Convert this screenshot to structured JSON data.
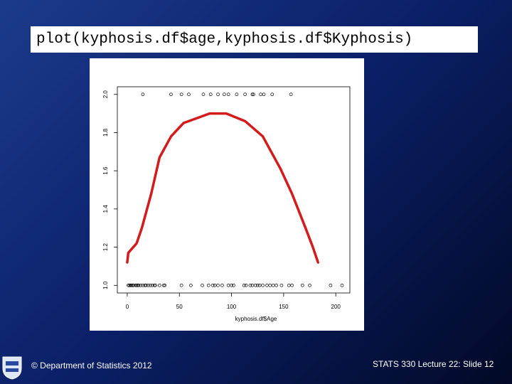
{
  "title": "plot(kyphosis.df$age,kyphosis.df$Kyphosis)",
  "footer": {
    "left": "© Department of Statistics 2012",
    "right": "STATS 330 Lecture 22: Slide 12"
  },
  "chart_data": {
    "type": "scatter",
    "x_label": "kyphosis.df$Age",
    "xlim": [
      -9.5,
      213.5
    ],
    "ylim": [
      0.96,
      2.04
    ],
    "xticks": [
      0,
      50,
      100,
      150,
      200
    ],
    "yticks": [
      {
        "value": 1,
        "label": "1.0"
      },
      1.2,
      1.4,
      1.6,
      1.8,
      {
        "value": 2,
        "label": "2.0"
      }
    ],
    "series": [
      {
        "type": "scatter",
        "color": "#000000",
        "x": [
          1,
          2,
          3,
          4,
          5,
          6,
          8,
          9,
          10,
          11,
          13,
          15,
          17,
          18,
          20,
          22,
          24,
          26,
          27,
          31,
          35,
          36,
          52,
          61,
          72,
          78,
          82,
          84,
          87,
          91,
          97,
          100,
          102,
          112,
          114,
          118,
          120,
          123,
          125,
          127,
          130,
          134,
          137,
          140,
          143,
          148,
          155,
          158,
          168,
          175,
          195,
          206,
          15,
          42,
          52,
          59,
          73,
          80,
          87,
          93,
          97,
          105,
          113,
          120,
          121,
          128,
          131,
          139,
          157
        ],
        "values": [
          1,
          1,
          1,
          1,
          1,
          1,
          1,
          1,
          1,
          1,
          1,
          1,
          1,
          1,
          1,
          1,
          1,
          1,
          1,
          1,
          1,
          1,
          1,
          1,
          1,
          1,
          1,
          1,
          1,
          1,
          1,
          1,
          1,
          1,
          1,
          1,
          1,
          1,
          1,
          1,
          1,
          1,
          1,
          1,
          1,
          1,
          1,
          1,
          1,
          1,
          1,
          1,
          2,
          2,
          2,
          2,
          2,
          2,
          2,
          2,
          2,
          2,
          2,
          2,
          2,
          2,
          2,
          2,
          2
        ]
      },
      {
        "type": "line",
        "color": "#d41a1a",
        "x": [
          0,
          1,
          9,
          14,
          23,
          31,
          42,
          54,
          69,
          79,
          95,
          113,
          130,
          147,
          158,
          171,
          178,
          183
        ],
        "values": [
          1.12,
          1.17,
          1.22,
          1.3,
          1.48,
          1.67,
          1.78,
          1.85,
          1.88,
          1.9,
          1.9,
          1.86,
          1.78,
          1.61,
          1.48,
          1.3,
          1.2,
          1.12
        ]
      }
    ]
  }
}
